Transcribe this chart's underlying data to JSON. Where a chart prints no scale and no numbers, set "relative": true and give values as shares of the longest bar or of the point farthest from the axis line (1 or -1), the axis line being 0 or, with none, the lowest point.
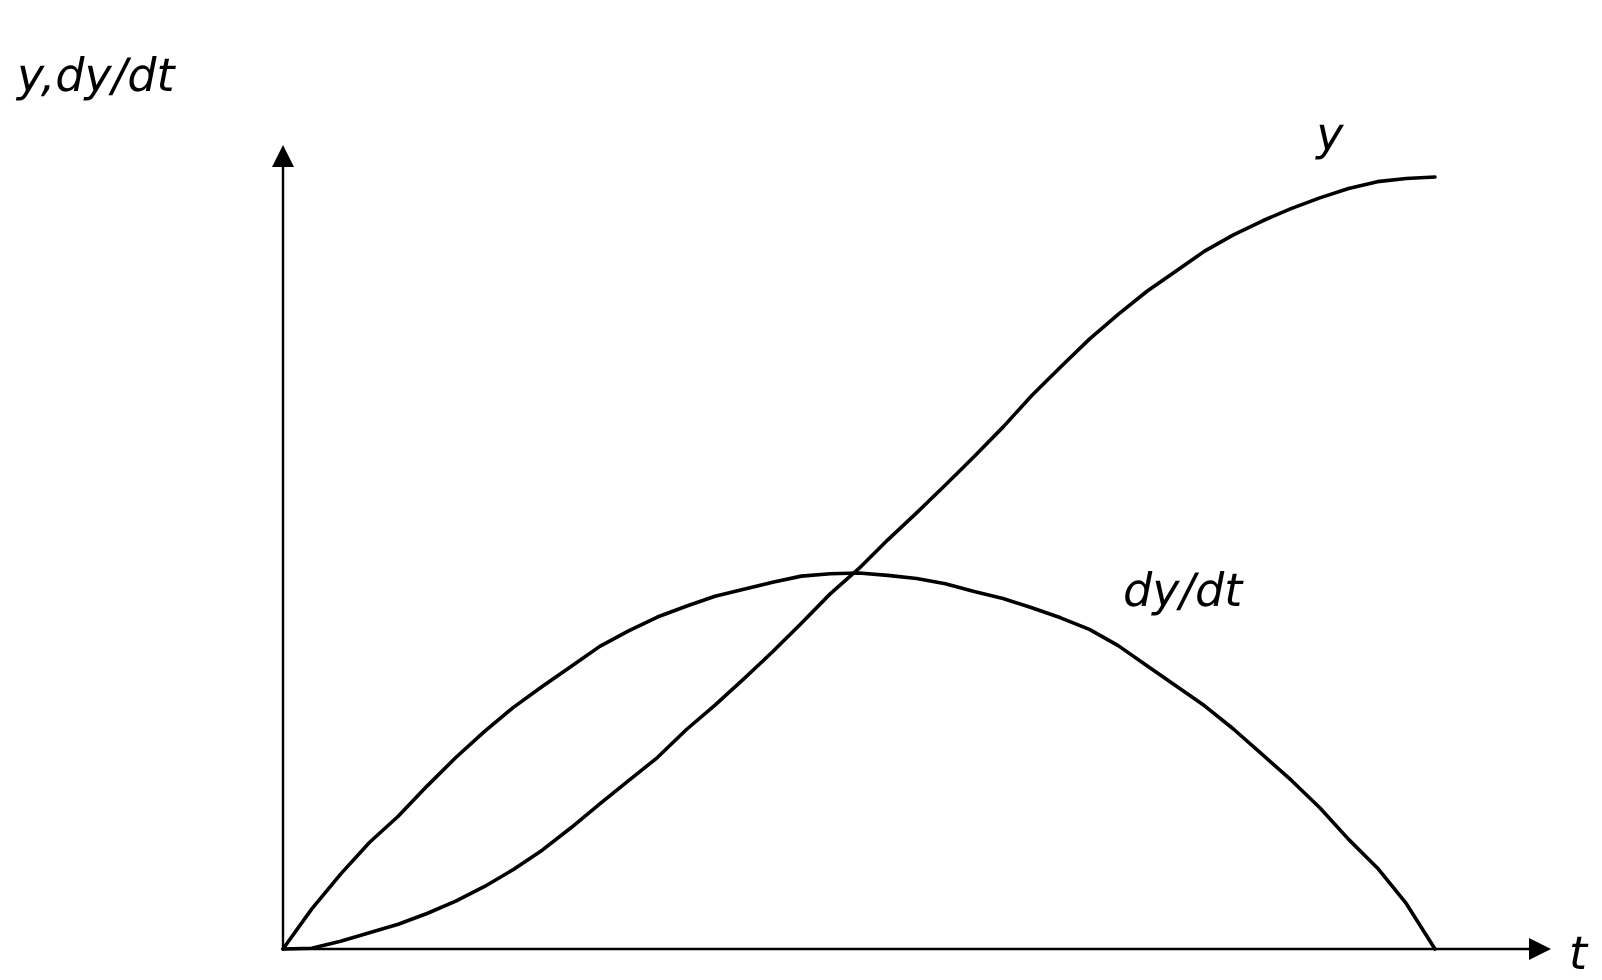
{
  "chart_data": {
    "type": "line",
    "xlabel": "t",
    "ylabel": "y,dy/dt",
    "relative": true,
    "categories": [
      null,
      null,
      null,
      null,
      null,
      null,
      null,
      null,
      null,
      null,
      null,
      null,
      null,
      null,
      null,
      null,
      null,
      null,
      null,
      null,
      null,
      null,
      null,
      null,
      null,
      null,
      null,
      null,
      null,
      null,
      null,
      null,
      null,
      null,
      null,
      null,
      null,
      null,
      null,
      null,
      null
    ],
    "series": [
      {
        "name": "y",
        "color": "#000000",
        "values": [
          0,
          0.001,
          0.01,
          0.021,
          0.032,
          0.046,
          0.062,
          0.081,
          0.103,
          0.128,
          0.157,
          0.188,
          0.218,
          0.248,
          0.284,
          0.316,
          0.35,
          0.385,
          0.422,
          0.46,
          0.493,
          0.53,
          0.565,
          0.601,
          0.638,
          0.676,
          0.717,
          0.754,
          0.79,
          0.822,
          0.852,
          0.878,
          0.904,
          0.925,
          0.943,
          0.959,
          0.973,
          0.985,
          0.994,
          0.998,
          1
        ]
      },
      {
        "name": "dy/dt",
        "color": "#000000",
        "values": [
          0,
          0.052,
          0.097,
          0.138,
          0.172,
          0.211,
          0.248,
          0.282,
          0.313,
          0.34,
          0.366,
          0.392,
          0.412,
          0.43,
          0.444,
          0.457,
          0.466,
          0.475,
          0.483,
          0.486,
          0.487,
          0.484,
          0.48,
          0.473,
          0.463,
          0.454,
          0.442,
          0.429,
          0.414,
          0.393,
          0.367,
          0.341,
          0.315,
          0.285,
          0.252,
          0.219,
          0.183,
          0.142,
          0.105,
          0.059,
          0
        ]
      }
    ]
  }
}
